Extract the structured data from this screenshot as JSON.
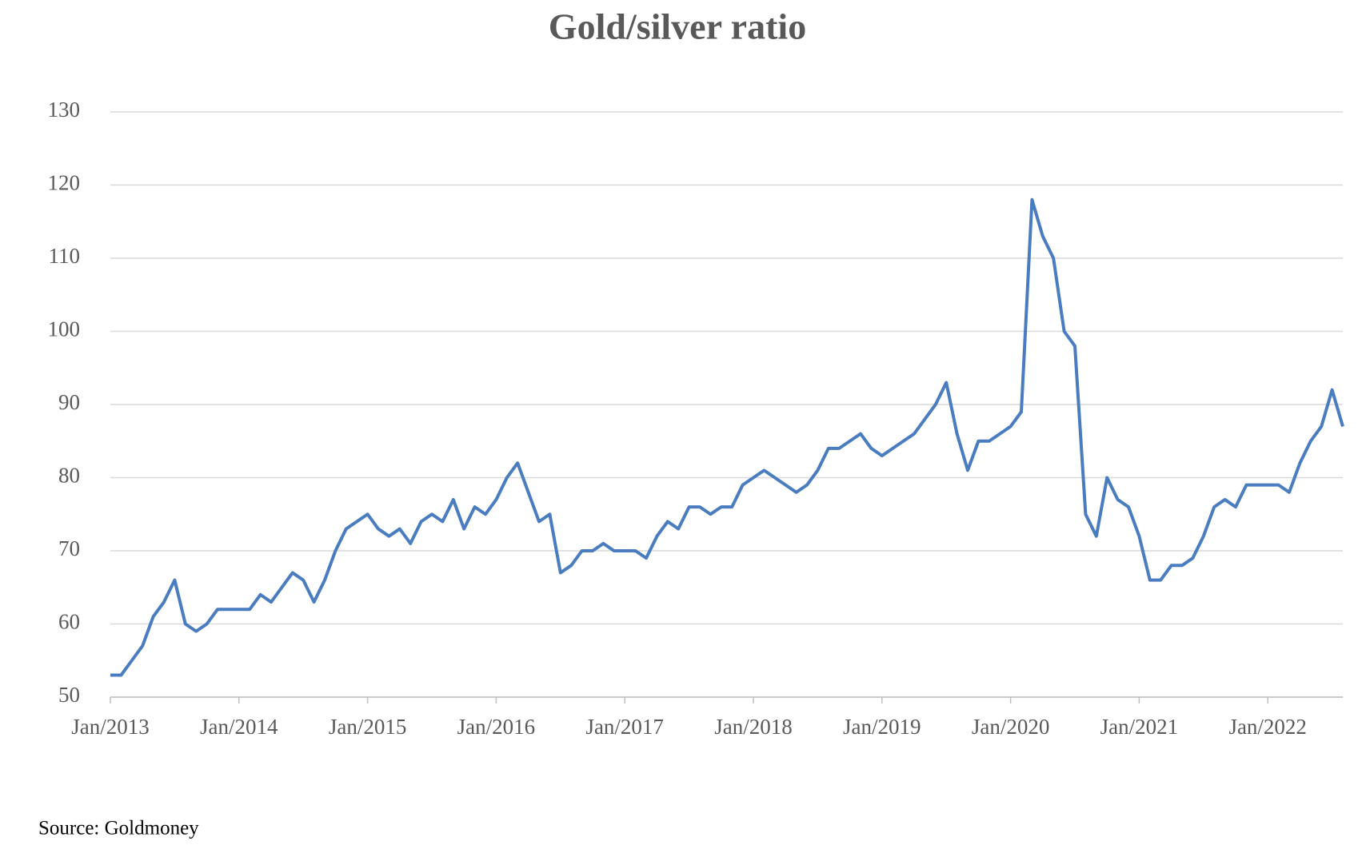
{
  "chart_data": {
    "type": "line",
    "title": "Gold/silver ratio",
    "source": "Source: Goldmoney",
    "x": [
      "2013-01",
      "2013-02",
      "2013-03",
      "2013-04",
      "2013-05",
      "2013-06",
      "2013-07",
      "2013-08",
      "2013-09",
      "2013-10",
      "2013-11",
      "2013-12",
      "2014-01",
      "2014-02",
      "2014-03",
      "2014-04",
      "2014-05",
      "2014-06",
      "2014-07",
      "2014-08",
      "2014-09",
      "2014-10",
      "2014-11",
      "2014-12",
      "2015-01",
      "2015-02",
      "2015-03",
      "2015-04",
      "2015-05",
      "2015-06",
      "2015-07",
      "2015-08",
      "2015-09",
      "2015-10",
      "2015-11",
      "2015-12",
      "2016-01",
      "2016-02",
      "2016-03",
      "2016-04",
      "2016-05",
      "2016-06",
      "2016-07",
      "2016-08",
      "2016-09",
      "2016-10",
      "2016-11",
      "2016-12",
      "2017-01",
      "2017-02",
      "2017-03",
      "2017-04",
      "2017-05",
      "2017-06",
      "2017-07",
      "2017-08",
      "2017-09",
      "2017-10",
      "2017-11",
      "2017-12",
      "2018-01",
      "2018-02",
      "2018-03",
      "2018-04",
      "2018-05",
      "2018-06",
      "2018-07",
      "2018-08",
      "2018-09",
      "2018-10",
      "2018-11",
      "2018-12",
      "2019-01",
      "2019-02",
      "2019-03",
      "2019-04",
      "2019-05",
      "2019-06",
      "2019-07",
      "2019-08",
      "2019-09",
      "2019-10",
      "2019-11",
      "2019-12",
      "2020-01",
      "2020-02",
      "2020-03",
      "2020-04",
      "2020-05",
      "2020-06",
      "2020-07",
      "2020-08",
      "2020-09",
      "2020-10",
      "2020-11",
      "2020-12",
      "2021-01",
      "2021-02",
      "2021-03",
      "2021-04",
      "2021-05",
      "2021-06",
      "2021-07",
      "2021-08",
      "2021-09",
      "2021-10",
      "2021-11",
      "2021-12",
      "2022-01",
      "2022-02",
      "2022-03",
      "2022-04",
      "2022-05",
      "2022-06",
      "2022-07",
      "2022-08"
    ],
    "series": [
      {
        "name": "Gold/silver ratio",
        "color": "#4a7cc0",
        "values": [
          53,
          53,
          55,
          57,
          61,
          63,
          66,
          60,
          59,
          60,
          62,
          62,
          62,
          62,
          64,
          63,
          65,
          67,
          66,
          63,
          66,
          70,
          73,
          74,
          75,
          73,
          72,
          73,
          71,
          74,
          75,
          74,
          77,
          73,
          76,
          75,
          77,
          80,
          82,
          78,
          74,
          75,
          67,
          68,
          70,
          70,
          71,
          70,
          70,
          70,
          69,
          72,
          74,
          73,
          76,
          76,
          75,
          76,
          76,
          79,
          80,
          81,
          80,
          79,
          78,
          79,
          81,
          84,
          84,
          85,
          86,
          84,
          83,
          84,
          85,
          86,
          88,
          90,
          93,
          86,
          81,
          85,
          85,
          86,
          87,
          89,
          118,
          113,
          110,
          100,
          98,
          75,
          72,
          80,
          77,
          76,
          72,
          66,
          66,
          68,
          68,
          69,
          72,
          76,
          77,
          76,
          79,
          79,
          79,
          79,
          78,
          82,
          85,
          87,
          92,
          87
        ]
      }
    ],
    "xlim": [
      "2013-01",
      "2022-08"
    ],
    "xticks": [
      {
        "value": "2013-01",
        "label": "Jan/2013"
      },
      {
        "value": "2014-01",
        "label": "Jan/2014"
      },
      {
        "value": "2015-01",
        "label": "Jan/2015"
      },
      {
        "value": "2016-01",
        "label": "Jan/2016"
      },
      {
        "value": "2017-01",
        "label": "Jan/2017"
      },
      {
        "value": "2018-01",
        "label": "Jan/2018"
      },
      {
        "value": "2019-01",
        "label": "Jan/2019"
      },
      {
        "value": "2020-01",
        "label": "Jan/2020"
      },
      {
        "value": "2021-01",
        "label": "Jan/2021"
      },
      {
        "value": "2022-01",
        "label": "Jan/2022"
      }
    ],
    "ylim": [
      50,
      130
    ],
    "yticks": [
      50,
      60,
      70,
      80,
      90,
      100,
      110,
      120,
      130
    ],
    "grid": true
  }
}
